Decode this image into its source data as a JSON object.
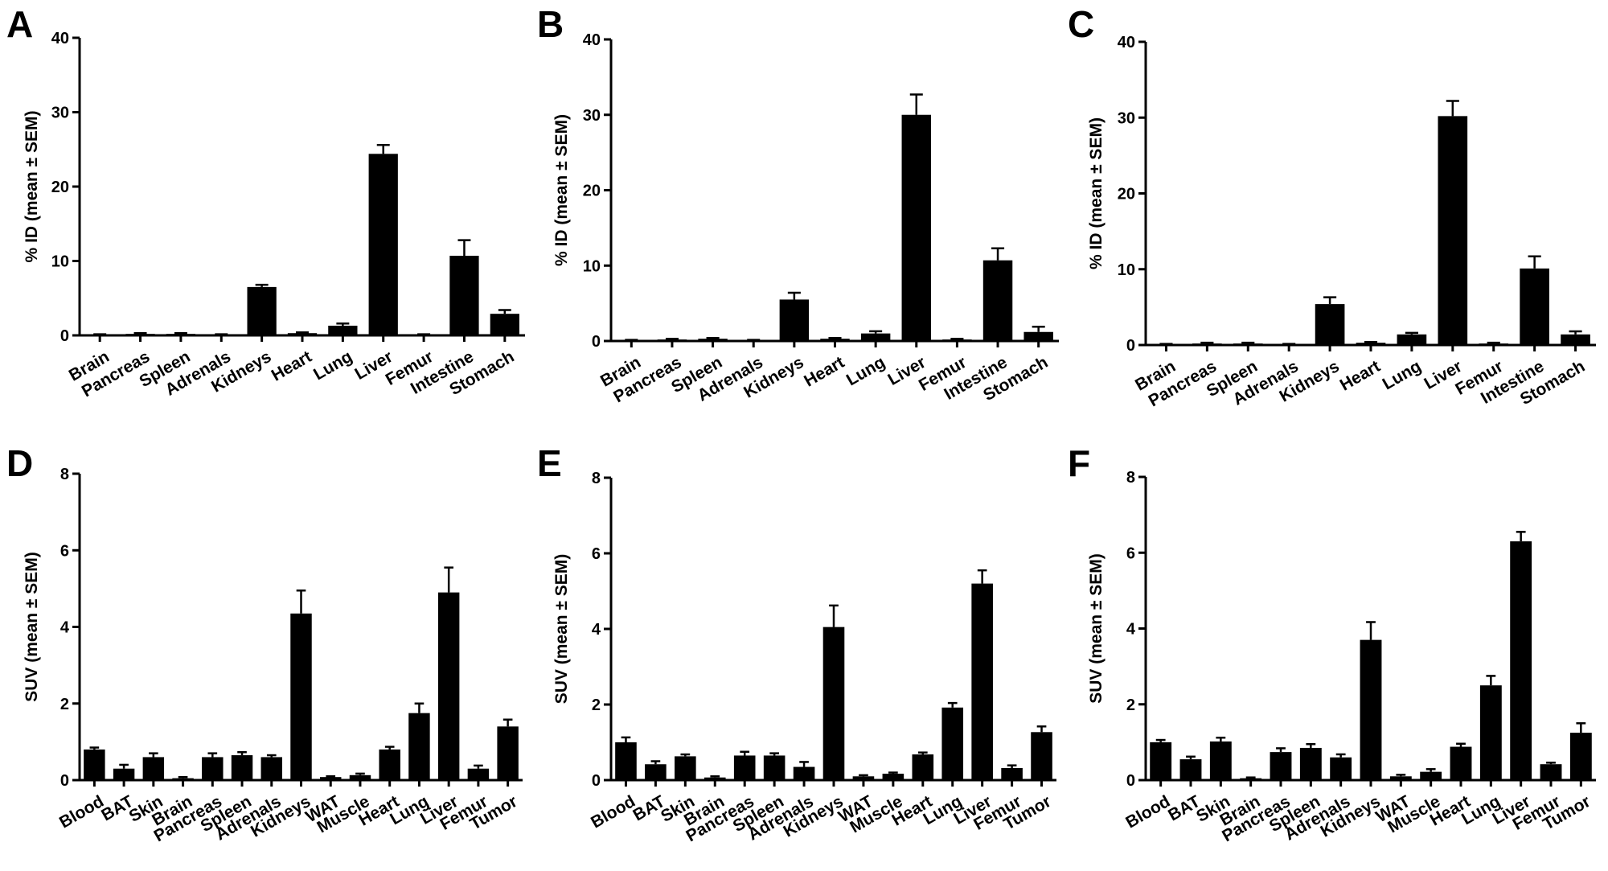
{
  "chart_data": [
    {
      "panel": "A",
      "type": "bar",
      "ylabel": "% ID (mean ± SEM)",
      "ylim": [
        0,
        40
      ],
      "yticks": [
        0,
        10,
        20,
        30,
        40
      ],
      "categories": [
        "Brain",
        "Pancreas",
        "Spleen",
        "Adrenals",
        "Kidneys",
        "Heart",
        "Lung",
        "Liver",
        "Femur",
        "Intestine",
        "Stomach"
      ],
      "values": [
        0.1,
        0.2,
        0.2,
        0.1,
        6.5,
        0.3,
        1.3,
        24.4,
        0.1,
        10.7,
        2.9
      ],
      "errors": [
        0.05,
        0.1,
        0.1,
        0.05,
        0.3,
        0.1,
        0.3,
        1.2,
        0.05,
        2.1,
        0.5
      ],
      "color": "#000000"
    },
    {
      "panel": "B",
      "type": "bar",
      "ylabel": "% ID (mean ± SEM)",
      "ylim": [
        0,
        40
      ],
      "yticks": [
        0,
        10,
        20,
        30,
        40
      ],
      "categories": [
        "Brain",
        "Pancreas",
        "Spleen",
        "Adrenals",
        "Kidneys",
        "Heart",
        "Lung",
        "Liver",
        "Femur",
        "Intestine",
        "Stomach"
      ],
      "values": [
        0.1,
        0.2,
        0.3,
        0.1,
        5.5,
        0.3,
        1.0,
        30.0,
        0.2,
        10.7,
        1.2
      ],
      "errors": [
        0.05,
        0.1,
        0.1,
        0.05,
        0.9,
        0.1,
        0.3,
        2.7,
        0.1,
        1.6,
        0.7
      ],
      "color": "#000000"
    },
    {
      "panel": "C",
      "type": "bar",
      "ylabel": "% ID (mean ± SEM)",
      "ylim": [
        0,
        40
      ],
      "yticks": [
        0,
        10,
        20,
        30,
        40
      ],
      "categories": [
        "Brain",
        "Pancreas",
        "Spleen",
        "Adrenals",
        "Kidneys",
        "Heart",
        "Lung",
        "Liver",
        "Femur",
        "Intestine",
        "Stomach"
      ],
      "values": [
        0.1,
        0.2,
        0.2,
        0.1,
        5.4,
        0.3,
        1.4,
        30.2,
        0.2,
        10.1,
        1.4
      ],
      "errors": [
        0.05,
        0.1,
        0.1,
        0.05,
        0.9,
        0.1,
        0.2,
        2.0,
        0.1,
        1.6,
        0.4
      ],
      "color": "#000000"
    },
    {
      "panel": "D",
      "type": "bar",
      "ylabel": "SUV (mean ± SEM)",
      "ylim": [
        0,
        8
      ],
      "yticks": [
        0,
        2,
        4,
        6,
        8
      ],
      "categories": [
        "Blood",
        "BAT",
        "Skin",
        "Brain",
        "Pancreas",
        "Spleen",
        "Adrenals",
        "Kidneys",
        "WAT",
        "Muscle",
        "Heart",
        "Lung",
        "Liver",
        "Femur",
        "Tumor"
      ],
      "values": [
        0.8,
        0.3,
        0.6,
        0.05,
        0.6,
        0.65,
        0.6,
        4.35,
        0.08,
        0.13,
        0.8,
        1.75,
        4.9,
        0.3,
        1.4
      ],
      "errors": [
        0.05,
        0.1,
        0.1,
        0.03,
        0.1,
        0.08,
        0.05,
        0.6,
        0.02,
        0.04,
        0.07,
        0.25,
        0.65,
        0.08,
        0.18
      ],
      "color": "#000000"
    },
    {
      "panel": "E",
      "type": "bar",
      "ylabel": "SUV (mean ± SEM)",
      "ylim": [
        0,
        8
      ],
      "yticks": [
        0,
        2,
        4,
        6,
        8
      ],
      "categories": [
        "Blood",
        "BAT",
        "Skin",
        "Brain",
        "Pancreas",
        "Spleen",
        "Adrenals",
        "Kidneys",
        "WAT",
        "Muscle",
        "Heart",
        "Lung",
        "Liver",
        "Femur",
        "Tumor"
      ],
      "values": [
        1.0,
        0.42,
        0.63,
        0.07,
        0.65,
        0.65,
        0.35,
        4.05,
        0.1,
        0.17,
        0.68,
        1.92,
        5.2,
        0.32,
        1.27
      ],
      "errors": [
        0.13,
        0.08,
        0.05,
        0.03,
        0.1,
        0.06,
        0.13,
        0.57,
        0.03,
        0.03,
        0.05,
        0.12,
        0.35,
        0.07,
        0.15
      ],
      "color": "#000000"
    },
    {
      "panel": "F",
      "type": "bar",
      "ylabel": "SUV (mean ± SEM)",
      "ylim": [
        0,
        8
      ],
      "yticks": [
        0,
        2,
        4,
        6,
        8
      ],
      "categories": [
        "Blood",
        "BAT",
        "Skin",
        "Brain",
        "Pancreas",
        "Spleen",
        "Adrenals",
        "Kidneys",
        "WAT",
        "Muscle",
        "Heart",
        "Lung",
        "Liver",
        "Femur",
        "Tumor"
      ],
      "values": [
        1.0,
        0.55,
        1.02,
        0.05,
        0.74,
        0.85,
        0.6,
        3.7,
        0.1,
        0.22,
        0.88,
        2.5,
        6.3,
        0.42,
        1.25
      ],
      "errors": [
        0.06,
        0.07,
        0.1,
        0.02,
        0.1,
        0.1,
        0.08,
        0.47,
        0.04,
        0.07,
        0.08,
        0.25,
        0.25,
        0.04,
        0.25
      ],
      "color": "#000000"
    }
  ]
}
